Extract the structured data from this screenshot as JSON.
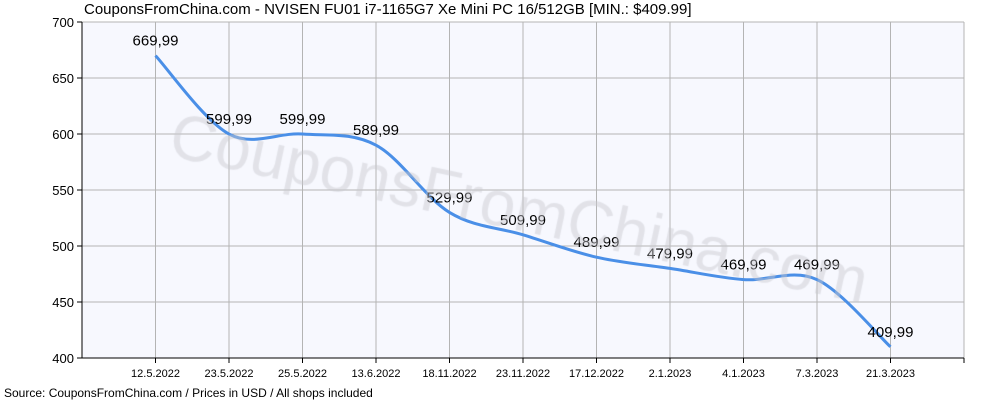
{
  "chart_data": {
    "type": "line",
    "title": "CouponsFromChina.com - NVISEN FU01 i7-1165G7 Xe Mini PC 16/512GB [MIN.: $409.99]",
    "categories": [
      "12.5.2022",
      "23.5.2022",
      "25.5.2022",
      "13.6.2022",
      "18.11.2022",
      "23.11.2022",
      "17.12.2022",
      "2.1.2023",
      "4.1.2023",
      "7.3.2023",
      "21.3.2023"
    ],
    "values": [
      669.99,
      599.99,
      599.99,
      589.99,
      529.99,
      509.99,
      489.99,
      479.99,
      469.99,
      469.99,
      409.99
    ],
    "data_labels": [
      "669,99",
      "599,99",
      "599,99",
      "589,99",
      "529,99",
      "509,99",
      "489,99",
      "479,99",
      "469,99",
      "469,99",
      "409,99"
    ],
    "ylim": [
      400,
      700
    ],
    "yticks": [
      "400",
      "450",
      "500",
      "550",
      "600",
      "650",
      "700"
    ],
    "grid": true,
    "line_color": "#4a8fe7",
    "plot_background": "#f7f8fe",
    "watermark": "CouponsFromChina.com",
    "footer": "Source:  CouponsFromChina.com / Prices in USD / All shops included"
  }
}
